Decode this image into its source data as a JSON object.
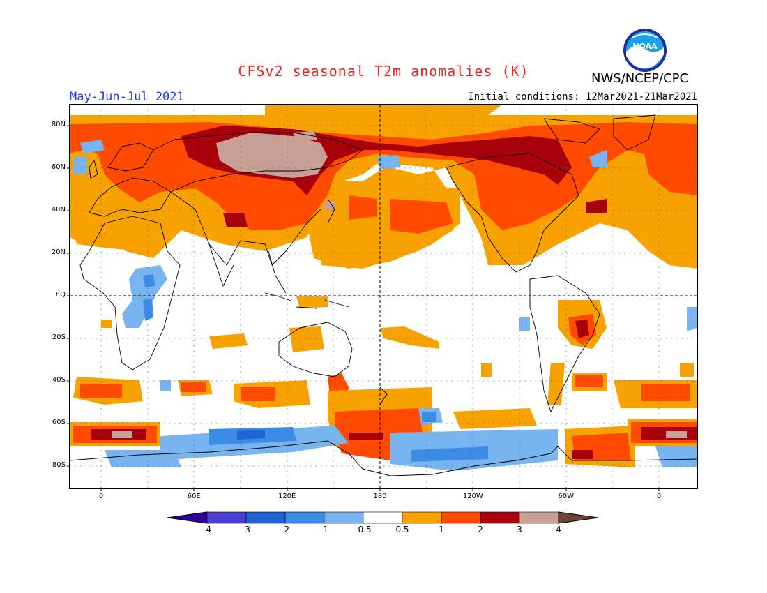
{
  "title": "CFSv2 seasonal T2m anomalies (K)",
  "agency": "NWS/NCEP/CPC",
  "logo_text": "NOAA",
  "season": "May-Jun-Jul 2021",
  "initial_conditions": "Initial conditions: 12Mar2021-21Mar2021",
  "lat_labels": [
    "80N",
    "60N",
    "40N",
    "20N",
    "EQ",
    "20S",
    "40S",
    "60S",
    "80S"
  ],
  "lat_values": [
    80,
    60,
    40,
    20,
    0,
    -20,
    -40,
    -60,
    -80
  ],
  "lon_labels": [
    "0",
    "60E",
    "120E",
    "180",
    "120W",
    "60W",
    "0"
  ],
  "lon_values": [
    0,
    60,
    120,
    180,
    240,
    300,
    360
  ],
  "colorbar": {
    "labels": [
      "-4",
      "-3",
      "-2",
      "-1",
      "-0.5",
      "0.5",
      "1",
      "2",
      "3",
      "4"
    ],
    "colors": [
      "#3200a0",
      "#4a3fcf",
      "#1e64d2",
      "#3c8ce6",
      "#78b4f0",
      "#ffffff",
      "#f7a200",
      "#ff4a00",
      "#a8000a",
      "#c8a096",
      "#6b4436"
    ]
  },
  "colors": {
    "map_border": "#000000",
    "coastline": "#000000"
  }
}
